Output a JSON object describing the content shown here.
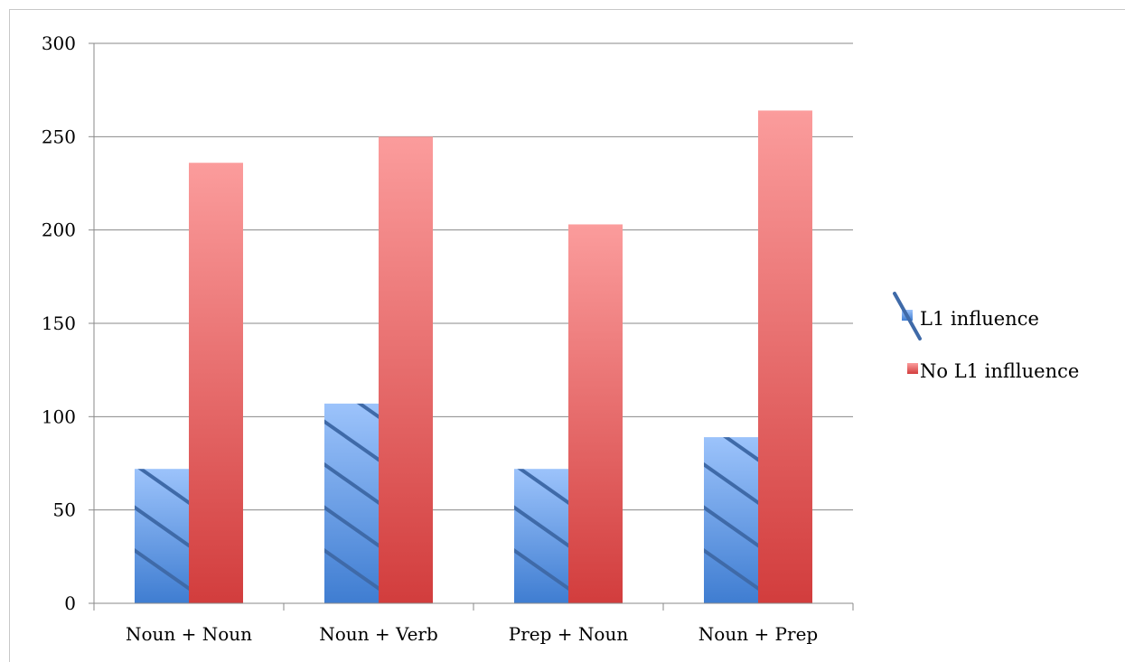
{
  "chart_data": {
    "type": "bar",
    "title": "",
    "xlabel": "",
    "ylabel": "",
    "categories": [
      "Noun + Noun",
      "Noun + Verb",
      "Prep + Noun",
      "Noun + Prep"
    ],
    "series": [
      {
        "name": "L1 influence",
        "values": [
          72,
          107,
          72,
          89
        ],
        "color": "#5b8fd6"
      },
      {
        "name": "No L1 inflluence",
        "values": [
          236,
          250,
          203,
          264
        ],
        "color": "#e04a4a"
      }
    ],
    "ylim": [
      0,
      300
    ],
    "yticks": [
      0,
      50,
      100,
      150,
      200,
      250,
      300
    ],
    "grid": true,
    "legend_position": "right"
  }
}
